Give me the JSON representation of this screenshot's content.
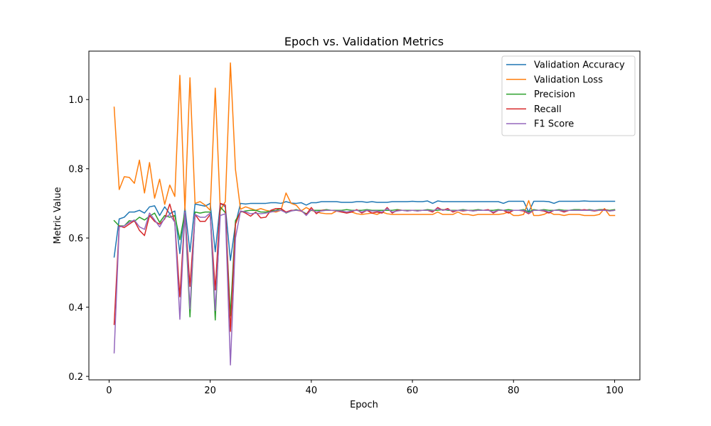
{
  "chart_data": {
    "type": "line",
    "title": "Epoch vs. Validation Metrics",
    "xlabel": "Epoch",
    "ylabel": "Metric Value",
    "xlim": [
      -4,
      105
    ],
    "ylim": [
      0.19,
      1.14
    ],
    "xticks": [
      0,
      20,
      40,
      60,
      80,
      100
    ],
    "yticks": [
      0.2,
      0.4,
      0.6,
      0.8,
      1.0
    ],
    "ytick_labels": [
      "0.2",
      "0.4",
      "0.6",
      "0.8",
      "1.0"
    ],
    "grid": false,
    "legend_position": "top-right",
    "x": [
      1,
      2,
      3,
      4,
      5,
      6,
      7,
      8,
      9,
      10,
      11,
      12,
      13,
      14,
      15,
      16,
      17,
      18,
      19,
      20,
      21,
      22,
      23,
      24,
      25,
      26,
      27,
      28,
      29,
      30,
      31,
      32,
      33,
      34,
      35,
      36,
      37,
      38,
      39,
      40,
      41,
      42,
      43,
      44,
      45,
      46,
      47,
      48,
      49,
      50,
      51,
      52,
      53,
      54,
      55,
      56,
      57,
      58,
      59,
      60,
      61,
      62,
      63,
      64,
      65,
      66,
      67,
      68,
      69,
      70,
      71,
      72,
      73,
      74,
      75,
      76,
      77,
      78,
      79,
      80,
      81,
      82,
      83,
      84,
      85,
      86,
      87,
      88,
      89,
      90,
      91,
      92,
      93,
      94,
      95,
      96,
      97,
      98,
      99,
      100
    ],
    "series": [
      {
        "name": "Validation Accuracy",
        "color": "#1f77b4",
        "values": [
          0.545,
          0.655,
          0.66,
          0.675,
          0.675,
          0.68,
          0.672,
          0.69,
          0.693,
          0.665,
          0.69,
          0.67,
          0.678,
          0.555,
          0.688,
          0.56,
          0.698,
          0.695,
          0.692,
          0.7,
          0.56,
          0.7,
          0.69,
          0.535,
          0.64,
          0.7,
          0.698,
          0.7,
          0.7,
          0.7,
          0.7,
          0.702,
          0.702,
          0.7,
          0.705,
          0.701,
          0.7,
          0.702,
          0.695,
          0.702,
          0.702,
          0.705,
          0.705,
          0.705,
          0.705,
          0.703,
          0.703,
          0.703,
          0.705,
          0.705,
          0.703,
          0.705,
          0.703,
          0.703,
          0.703,
          0.705,
          0.705,
          0.705,
          0.705,
          0.706,
          0.705,
          0.705,
          0.707,
          0.7,
          0.707,
          0.705,
          0.705,
          0.705,
          0.705,
          0.705,
          0.705,
          0.705,
          0.705,
          0.705,
          0.705,
          0.705,
          0.705,
          0.7,
          0.706,
          0.706,
          0.706,
          0.706,
          0.675,
          0.706,
          0.706,
          0.706,
          0.705,
          0.7,
          0.706,
          0.706,
          0.706,
          0.706,
          0.706,
          0.707,
          0.706,
          0.706,
          0.706,
          0.706,
          0.706,
          0.706
        ]
      },
      {
        "name": "Validation Loss",
        "color": "#ff7f0e",
        "values": [
          0.978,
          0.74,
          0.777,
          0.775,
          0.758,
          0.825,
          0.73,
          0.818,
          0.715,
          0.77,
          0.697,
          0.753,
          0.72,
          1.07,
          0.68,
          1.063,
          0.7,
          0.705,
          0.695,
          0.68,
          1.033,
          0.68,
          0.705,
          1.106,
          0.798,
          0.683,
          0.69,
          0.685,
          0.68,
          0.685,
          0.68,
          0.677,
          0.675,
          0.68,
          0.73,
          0.7,
          0.695,
          0.678,
          0.688,
          0.68,
          0.675,
          0.672,
          0.67,
          0.67,
          0.678,
          0.675,
          0.673,
          0.675,
          0.67,
          0.668,
          0.67,
          0.672,
          0.668,
          0.675,
          0.67,
          0.668,
          0.668,
          0.668,
          0.668,
          0.668,
          0.668,
          0.668,
          0.668,
          0.668,
          0.675,
          0.668,
          0.668,
          0.668,
          0.675,
          0.668,
          0.668,
          0.665,
          0.668,
          0.668,
          0.668,
          0.668,
          0.668,
          0.67,
          0.675,
          0.665,
          0.665,
          0.668,
          0.708,
          0.665,
          0.665,
          0.668,
          0.675,
          0.668,
          0.668,
          0.665,
          0.668,
          0.668,
          0.668,
          0.665,
          0.665,
          0.665,
          0.668,
          0.685,
          0.665,
          0.665
        ]
      },
      {
        "name": "Precision",
        "color": "#2ca02c",
        "values": [
          0.65,
          0.635,
          0.635,
          0.65,
          0.648,
          0.66,
          0.652,
          0.663,
          0.672,
          0.645,
          0.665,
          0.66,
          0.665,
          0.595,
          0.675,
          0.372,
          0.675,
          0.672,
          0.675,
          0.675,
          0.363,
          0.69,
          0.673,
          0.375,
          0.65,
          0.675,
          0.678,
          0.68,
          0.68,
          0.675,
          0.675,
          0.678,
          0.68,
          0.685,
          0.672,
          0.678,
          0.682,
          0.678,
          0.67,
          0.68,
          0.68,
          0.68,
          0.682,
          0.68,
          0.68,
          0.68,
          0.682,
          0.68,
          0.68,
          0.68,
          0.682,
          0.68,
          0.68,
          0.68,
          0.68,
          0.68,
          0.682,
          0.68,
          0.68,
          0.68,
          0.68,
          0.68,
          0.682,
          0.68,
          0.68,
          0.682,
          0.68,
          0.68,
          0.68,
          0.682,
          0.68,
          0.68,
          0.682,
          0.68,
          0.68,
          0.68,
          0.682,
          0.68,
          0.682,
          0.68,
          0.68,
          0.682,
          0.675,
          0.682,
          0.68,
          0.682,
          0.68,
          0.68,
          0.682,
          0.68,
          0.68,
          0.682,
          0.682,
          0.68,
          0.682,
          0.68,
          0.682,
          0.682,
          0.68,
          0.682
        ]
      },
      {
        "name": "Recall",
        "color": "#d62728",
        "values": [
          0.35,
          0.635,
          0.63,
          0.64,
          0.65,
          0.622,
          0.607,
          0.665,
          0.648,
          0.64,
          0.655,
          0.698,
          0.645,
          0.43,
          0.675,
          0.46,
          0.668,
          0.648,
          0.648,
          0.668,
          0.45,
          0.7,
          0.695,
          0.33,
          0.64,
          0.678,
          0.672,
          0.663,
          0.675,
          0.658,
          0.66,
          0.68,
          0.685,
          0.685,
          0.675,
          0.68,
          0.68,
          0.678,
          0.668,
          0.688,
          0.67,
          0.68,
          0.68,
          0.68,
          0.678,
          0.675,
          0.672,
          0.675,
          0.682,
          0.672,
          0.68,
          0.672,
          0.675,
          0.672,
          0.688,
          0.672,
          0.68,
          0.68,
          0.678,
          0.68,
          0.678,
          0.68,
          0.68,
          0.675,
          0.688,
          0.68,
          0.685,
          0.675,
          0.68,
          0.678,
          0.68,
          0.678,
          0.68,
          0.68,
          0.682,
          0.672,
          0.68,
          0.68,
          0.672,
          0.68,
          0.68,
          0.678,
          0.67,
          0.68,
          0.68,
          0.678,
          0.672,
          0.68,
          0.68,
          0.675,
          0.68,
          0.68,
          0.68,
          0.682,
          0.68,
          0.678,
          0.68,
          0.682,
          0.678,
          0.68
        ]
      },
      {
        "name": "F1 Score",
        "color": "#9467bd",
        "values": [
          0.268,
          0.632,
          0.635,
          0.645,
          0.652,
          0.632,
          0.625,
          0.672,
          0.652,
          0.632,
          0.658,
          0.668,
          0.645,
          0.365,
          0.675,
          0.395,
          0.668,
          0.66,
          0.66,
          0.672,
          0.39,
          0.665,
          0.67,
          0.233,
          0.6,
          0.678,
          0.675,
          0.67,
          0.672,
          0.67,
          0.672,
          0.675,
          0.678,
          0.68,
          0.673,
          0.678,
          0.68,
          0.68,
          0.665,
          0.682,
          0.675,
          0.678,
          0.68,
          0.68,
          0.678,
          0.678,
          0.675,
          0.678,
          0.68,
          0.675,
          0.68,
          0.678,
          0.678,
          0.675,
          0.685,
          0.675,
          0.678,
          0.68,
          0.678,
          0.68,
          0.678,
          0.68,
          0.68,
          0.678,
          0.685,
          0.68,
          0.682,
          0.678,
          0.68,
          0.68,
          0.68,
          0.678,
          0.68,
          0.68,
          0.68,
          0.675,
          0.68,
          0.68,
          0.678,
          0.68,
          0.68,
          0.68,
          0.672,
          0.68,
          0.68,
          0.68,
          0.675,
          0.68,
          0.68,
          0.678,
          0.68,
          0.68,
          0.68,
          0.68,
          0.68,
          0.68,
          0.68,
          0.68,
          0.678,
          0.68
        ]
      }
    ]
  }
}
